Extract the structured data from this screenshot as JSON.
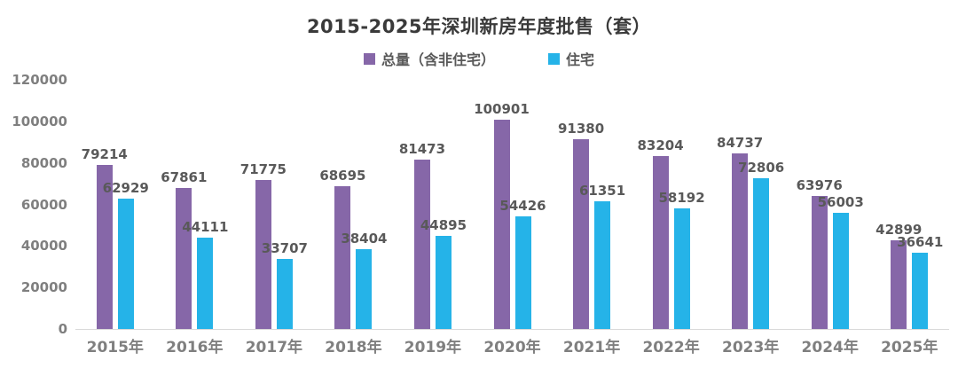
{
  "chart_data": {
    "type": "bar",
    "title": "2015-2025年深圳新房年度批售（套）",
    "categories": [
      "2015年",
      "2016年",
      "2017年",
      "2018年",
      "2019年",
      "2020年",
      "2021年",
      "2022年",
      "2023年",
      "2024年",
      "2025年"
    ],
    "series": [
      {
        "name": "总量（含非住宅）",
        "color": "#8667a8",
        "values": [
          79214,
          67861,
          71775,
          68695,
          81473,
          100901,
          91380,
          83204,
          84737,
          63976,
          42899
        ]
      },
      {
        "name": "住宅",
        "color": "#25b3e8",
        "values": [
          62929,
          44111,
          33707,
          38404,
          44895,
          54426,
          61351,
          58192,
          72806,
          56003,
          36641
        ]
      }
    ],
    "yticks": [
      0,
      20000,
      40000,
      60000,
      80000,
      100000,
      120000
    ],
    "ylim": [
      0,
      120000
    ],
    "grid": false,
    "legend_position": "top",
    "xlabel": "",
    "ylabel": "",
    "data_labels": true
  },
  "style_colors": {
    "title_text": "#3a3a3a",
    "data_label_text": "#595959",
    "axis_tick_text": "#7f7f7f",
    "axis_line": "#d9d9d9",
    "background": "#ffffff"
  }
}
